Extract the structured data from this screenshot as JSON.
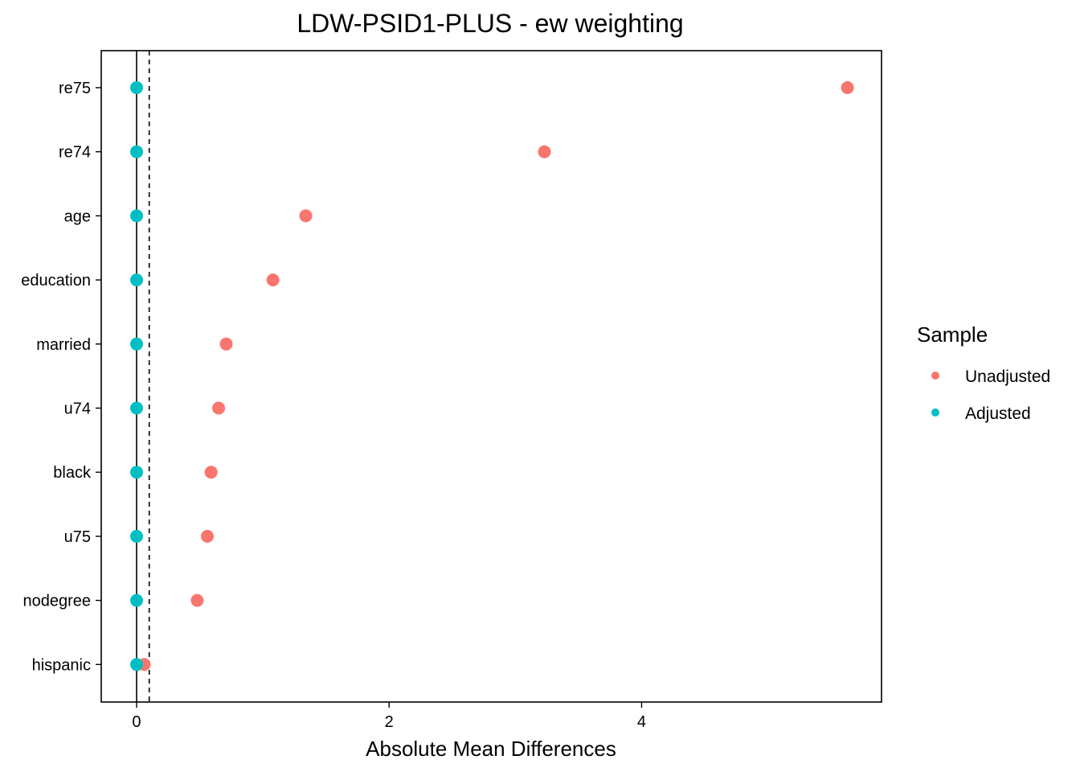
{
  "chart_data": {
    "type": "scatter",
    "title": "LDW-PSID1-PLUS - ew weighting",
    "xlabel": "Absolute Mean Differences",
    "ylabel": "",
    "xlim": [
      -0.28,
      5.9
    ],
    "x_ticks": [
      0,
      2,
      4
    ],
    "reference_lines": [
      {
        "x": 0,
        "style": "solid"
      },
      {
        "x": 0.1,
        "style": "dashed"
      }
    ],
    "categories": [
      "re75",
      "re74",
      "age",
      "education",
      "married",
      "u74",
      "black",
      "u75",
      "nodegree",
      "hispanic"
    ],
    "series": [
      {
        "name": "Unadjusted",
        "color": "#F8766D",
        "values": [
          5.63,
          3.23,
          1.34,
          1.08,
          0.71,
          0.65,
          0.59,
          0.56,
          0.48,
          0.06
        ]
      },
      {
        "name": "Adjusted",
        "color": "#00BFC4",
        "values": [
          0.0,
          0.0,
          0.0,
          0.0,
          0.0,
          0.0,
          0.0,
          0.0,
          0.0,
          0.0
        ]
      }
    ],
    "legend": {
      "title": "Sample",
      "position": "right"
    },
    "grid": false
  }
}
